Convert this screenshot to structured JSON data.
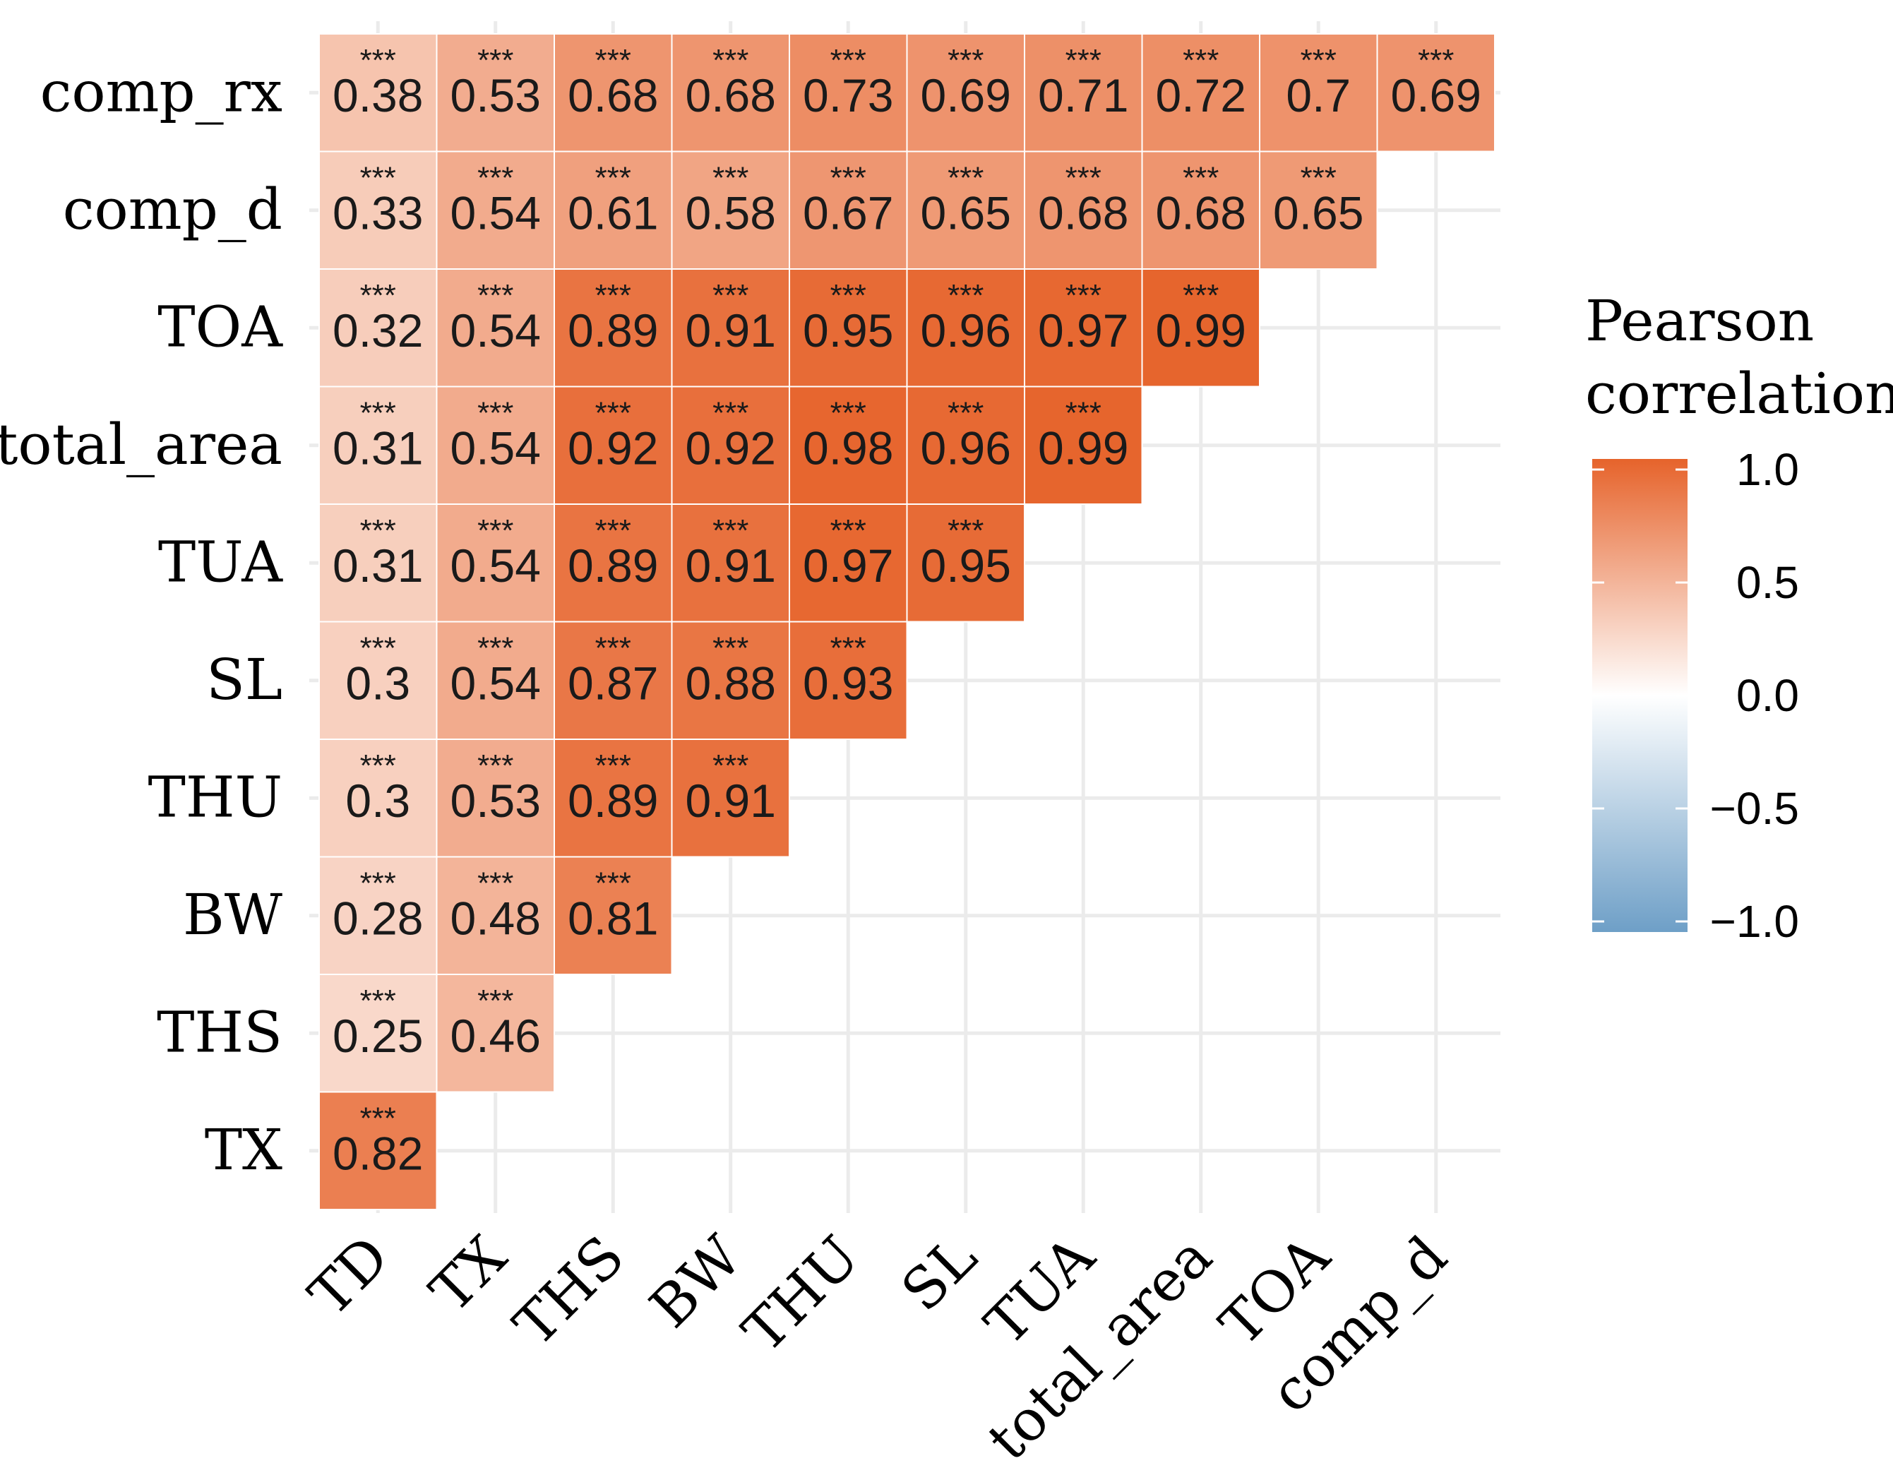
{
  "chart_data": {
    "type": "heatmap",
    "rows": [
      "comp_rx",
      "comp_d",
      "TOA",
      "total_area",
      "TUA",
      "SL",
      "THU",
      "BW",
      "THS",
      "TX"
    ],
    "columns": [
      "TD",
      "TX",
      "THS",
      "BW",
      "THU",
      "SL",
      "TUA",
      "total_area",
      "TOA",
      "comp_d"
    ],
    "values": [
      [
        0.38,
        0.53,
        0.68,
        0.68,
        0.73,
        0.69,
        0.71,
        0.72,
        0.7,
        0.69
      ],
      [
        0.33,
        0.54,
        0.61,
        0.58,
        0.67,
        0.65,
        0.68,
        0.68,
        0.65
      ],
      [
        0.32,
        0.54,
        0.89,
        0.91,
        0.95,
        0.96,
        0.97,
        0.99
      ],
      [
        0.31,
        0.54,
        0.92,
        0.92,
        0.98,
        0.96,
        0.99
      ],
      [
        0.31,
        0.54,
        0.89,
        0.91,
        0.97,
        0.95
      ],
      [
        0.3,
        0.54,
        0.87,
        0.88,
        0.93
      ],
      [
        0.3,
        0.53,
        0.89,
        0.91
      ],
      [
        0.28,
        0.48,
        0.81
      ],
      [
        0.25,
        0.46
      ],
      [
        0.82
      ]
    ],
    "significance": "***",
    "legend": {
      "title_line1": "Pearson",
      "title_line2": "correlation",
      "ticks": [
        "1.0",
        "0.5",
        "0.0",
        "−0.5",
        "−1.0"
      ],
      "tick_values": [
        1.0,
        0.5,
        0.0,
        -0.5,
        -1.0
      ],
      "range": [
        -1.0,
        1.0
      ],
      "position": "right"
    },
    "colors": {
      "low": "#6e9fc7",
      "mid": "#ffffff",
      "high": "#e6632b"
    },
    "grid": true
  }
}
